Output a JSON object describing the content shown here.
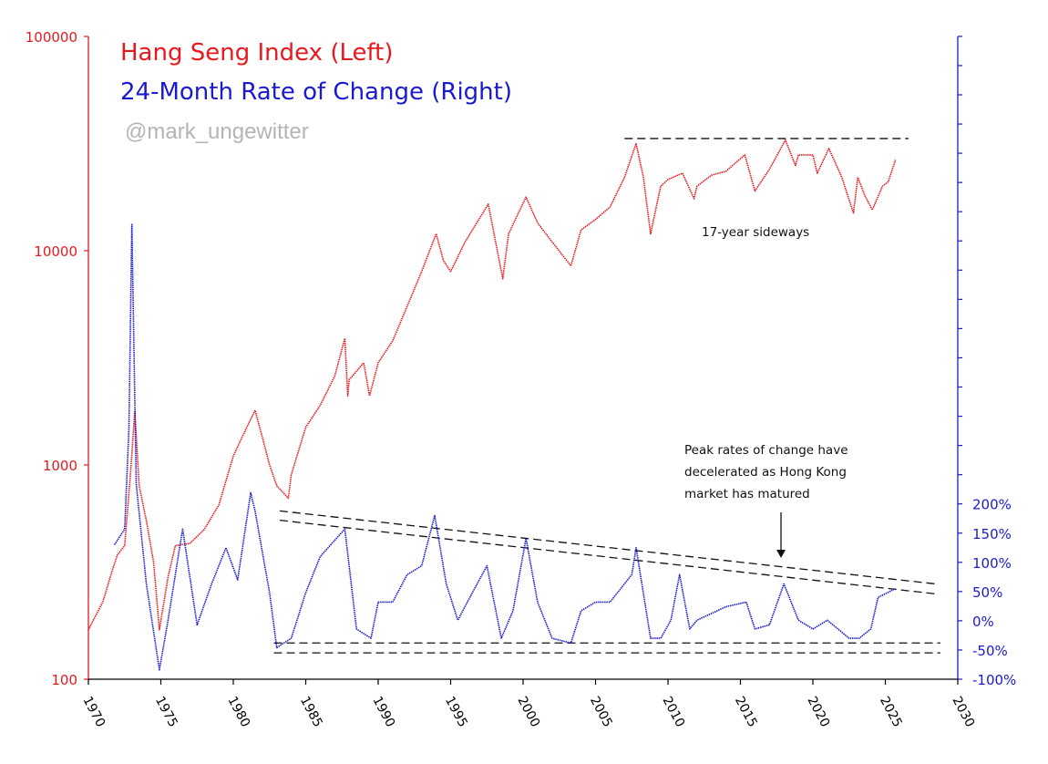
{
  "chart_data": {
    "type": "line",
    "legend": {
      "placement": "top-left",
      "left_series_label": "Hang Seng Index (Left)",
      "right_series_label": "24-Month Rate of Change (Right)",
      "watermark": "@mark_ungewitter"
    },
    "colors": {
      "left": "#e8191e",
      "right": "#1a1ad0",
      "watermark": "#b4b4b4",
      "annotation": "#111111"
    },
    "x_axis": {
      "range": [
        1970,
        2030
      ],
      "ticks": [
        "1970",
        "1975",
        "1980",
        "1985",
        "1990",
        "1995",
        "2000",
        "2005",
        "2010",
        "2015",
        "2020",
        "2025",
        "2030"
      ]
    },
    "left_axis": {
      "scale": "log",
      "range": [
        100,
        100000
      ],
      "ticks": [
        "100",
        "1000",
        "10000",
        "100000"
      ]
    },
    "right_axis": {
      "scale": "linear",
      "range": [
        -100,
        1000
      ],
      "ticks": [
        "-100%",
        "-50%",
        "0%",
        "50%",
        "100%",
        "150%",
        "200%"
      ]
    },
    "series": [
      {
        "name": "Hang Seng Index (Left)",
        "axis": "left",
        "x": [
          1970,
          1971,
          1971.7,
          1972,
          1972.5,
          1972.9,
          1973.2,
          1973.5,
          1974,
          1974.5,
          1974.9,
          1975.5,
          1976,
          1977,
          1978,
          1979,
          1980,
          1980.5,
          1981.5,
          1982,
          1982.5,
          1983,
          1983.8,
          1984,
          1985,
          1986,
          1987,
          1987.7,
          1987.9,
          1988,
          1989,
          1989.4,
          1990,
          1991,
          1992,
          1993,
          1994,
          1994.5,
          1995,
          1996,
          1997.6,
          1998.6,
          1999,
          2000.2,
          2001,
          2002,
          2003.3,
          2004,
          2005,
          2006,
          2007,
          2007.8,
          2008.3,
          2008.8,
          2009.5,
          2010,
          2011,
          2011.8,
          2012,
          2013,
          2014,
          2015.3,
          2016,
          2017,
          2018.1,
          2018.8,
          2019,
          2020,
          2020.3,
          2021.1,
          2022,
          2022.8,
          2023.1,
          2023.6,
          2024.1,
          2024.8,
          2025.2,
          2025.7
        ],
        "y": [
          170,
          230,
          330,
          380,
          420,
          900,
          1775,
          800,
          550,
          350,
          170,
          300,
          420,
          430,
          500,
          650,
          1100,
          1300,
          1800,
          1350,
          1000,
          800,
          700,
          900,
          1500,
          1900,
          2600,
          3900,
          2100,
          2500,
          3000,
          2100,
          3000,
          3800,
          5500,
          8000,
          12000,
          9000,
          8000,
          11000,
          16500,
          7400,
          12000,
          17800,
          13500,
          11000,
          8500,
          12500,
          14000,
          16000,
          22000,
          31600,
          22000,
          12000,
          20000,
          21500,
          23000,
          17500,
          20000,
          22500,
          23500,
          28000,
          19000,
          24000,
          32900,
          25000,
          28000,
          28000,
          23000,
          30000,
          22000,
          15000,
          22000,
          18000,
          15500,
          20000,
          21000,
          26500
        ]
      },
      {
        "name": "24-Month Rate of Change (Right)",
        "axis": "right",
        "x": [
          1971.8,
          1972.5,
          1972.8,
          1973.0,
          1973.3,
          1974,
          1974.9,
          1975.5,
          1976.5,
          1977.5,
          1978.5,
          1979.5,
          1980.3,
          1981.2,
          1981.5,
          1982.5,
          1983,
          1984,
          1985,
          1986,
          1987.7,
          1988.5,
          1989.5,
          1990,
          1991,
          1992,
          1993,
          1993.9,
          1994.7,
          1995.5,
          1996.5,
          1997.5,
          1998.5,
          1999.3,
          2000.2,
          2001,
          2002,
          2003.3,
          2004,
          2005,
          2006,
          2007.5,
          2007.8,
          2008.8,
          2009.5,
          2010.2,
          2010.8,
          2011.5,
          2012,
          2014,
          2015.4,
          2016,
          2017,
          2018,
          2019,
          2020,
          2021,
          2022.5,
          2023.2,
          2024,
          2024.5,
          2025.7
        ],
        "y": [
          130,
          157,
          330,
          678,
          234,
          63,
          -84,
          1,
          157,
          -7,
          63,
          125,
          70,
          219,
          188,
          48,
          -46,
          -30,
          48,
          110,
          157,
          -14,
          -30,
          32,
          32,
          79,
          94,
          180,
          63,
          1,
          48,
          94,
          -30,
          17,
          141,
          32,
          -30,
          -38,
          17,
          32,
          32,
          79,
          125,
          -30,
          -30,
          1,
          79,
          -14,
          1,
          24,
          32,
          -14,
          -7,
          63,
          1,
          -14,
          1,
          -30,
          -30,
          -14,
          40,
          55
        ]
      }
    ],
    "reference_lines": [
      {
        "axis": "left",
        "style": "dashed",
        "x": [
          2007,
          2026.6
        ],
        "y": [
          33400,
          33400
        ]
      },
      {
        "axis": "right",
        "style": "dashed",
        "x": [
          1983.2,
          2028.5
        ],
        "y": [
          188,
          63
        ]
      },
      {
        "axis": "right",
        "style": "dashed",
        "x": [
          1983.2,
          2028.5
        ],
        "y": [
          172,
          46
        ]
      },
      {
        "axis": "right",
        "style": "dashed",
        "x": [
          1982.8,
          2028.8
        ],
        "y": [
          -38,
          -38
        ]
      },
      {
        "axis": "right",
        "style": "dashed",
        "x": [
          1982.8,
          2028.8
        ],
        "y": [
          -55,
          -55
        ]
      }
    ],
    "annotations": {
      "sideways": "17-year sideways",
      "deceleration_lines": [
        "Peak rates of change have",
        "decelerated as Hong Kong",
        "market has matured"
      ],
      "arrow": {
        "x": 2017.8,
        "from_pct": 188,
        "to_pct": 103
      }
    }
  }
}
